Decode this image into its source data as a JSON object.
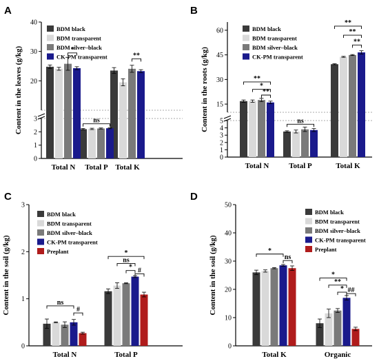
{
  "colors": {
    "BDM black": "#3a3a3a",
    "BDM transparent": "#d9d9d9",
    "BDM silver–black": "#7a7a7a",
    "CK-PM transparent": "#1a1a8c",
    "Preplant": "#b01c1c"
  },
  "chart_data": [
    {
      "panel": "A",
      "type": "bar",
      "ylabel": "Content in the leaves (g/kg)",
      "xlabel": "",
      "broken_axis": true,
      "ylim_lower": [
        0,
        3
      ],
      "ylim_upper": [
        10,
        40
      ],
      "yticks": [
        "0",
        "1",
        "2",
        "3",
        "20",
        "30",
        "40"
      ],
      "legend_position": "top-left",
      "categories": [
        "Total N",
        "Total P",
        "Total K"
      ],
      "series": [
        {
          "name": "BDM black",
          "values": [
            24.8,
            2.2,
            23.5
          ],
          "err": [
            0.6,
            0.05,
            1.0
          ]
        },
        {
          "name": "BDM transparent",
          "values": [
            24.1,
            2.22,
            19.5
          ],
          "err": [
            0.5,
            0.05,
            1.2
          ]
        },
        {
          "name": "BDM silver–black",
          "values": [
            25.8,
            2.25,
            24.1
          ],
          "err": [
            2.2,
            0.04,
            1.2
          ]
        },
        {
          "name": "CK-PM transparent",
          "values": [
            24.3,
            2.27,
            23.3
          ],
          "err": [
            0.5,
            0.04,
            0.5
          ]
        }
      ],
      "annotations": [
        {
          "label": "*",
          "group": 0,
          "pairs": [
            [
              2,
              3
            ]
          ],
          "y": 29.5
        },
        {
          "label": "ns",
          "group": 1,
          "pairs": [
            [
              0,
              3
            ]
          ],
          "y": 2.6
        },
        {
          "label": "**",
          "group": 2,
          "pairs": [
            [
              2,
              3
            ]
          ],
          "y": 27.5
        }
      ]
    },
    {
      "panel": "B",
      "type": "bar",
      "ylabel": "Content in the roots (g/kg)",
      "xlabel": "",
      "broken_axis": true,
      "ylim_lower": [
        0,
        5
      ],
      "ylim_upper": [
        10,
        65
      ],
      "yticks": [
        "0",
        "1",
        "2",
        "3",
        "4",
        "5",
        "15",
        "30",
        "45",
        "60"
      ],
      "legend_position": "top-left",
      "categories": [
        "Total N",
        "Total P",
        "Total K"
      ],
      "series": [
        {
          "name": "BDM black",
          "values": [
            16.8,
            3.5,
            39.3
          ],
          "err": [
            0.7,
            0.1,
            0.3
          ]
        },
        {
          "name": "BDM transparent",
          "values": [
            16.8,
            3.5,
            43.8
          ],
          "err": [
            0.7,
            0.2,
            0.3
          ]
        },
        {
          "name": "BDM silver–black",
          "values": [
            17.5,
            3.8,
            44.9
          ],
          "err": [
            1.0,
            0.3,
            0.3
          ]
        },
        {
          "name": "CK-PM transparent",
          "values": [
            16.0,
            3.7,
            46.5
          ],
          "err": [
            0.8,
            0.2,
            1.0
          ]
        }
      ],
      "annotations": [
        {
          "label": "**",
          "group": 0,
          "pairs": [
            [
              0,
              3
            ]
          ],
          "y": 28.5
        },
        {
          "label": "*",
          "group": 0,
          "pairs": [
            [
              1,
              3
            ]
          ],
          "y": 24
        },
        {
          "label": "**",
          "group": 0,
          "pairs": [
            [
              2,
              3
            ]
          ],
          "y": 20.5
        },
        {
          "label": "ns",
          "group": 1,
          "pairs": [
            [
              0,
              3
            ]
          ],
          "y": 4.5
        },
        {
          "label": "**",
          "group": 2,
          "pairs": [
            [
              0,
              3
            ]
          ],
          "y": 62.5
        },
        {
          "label": "**",
          "group": 2,
          "pairs": [
            [
              1,
              3
            ]
          ],
          "y": 57
        },
        {
          "label": "**",
          "group": 2,
          "pairs": [
            [
              2,
              3
            ]
          ],
          "y": 51
        }
      ]
    },
    {
      "panel": "C",
      "type": "bar",
      "ylabel": "Content in the soil (g/kg)",
      "xlabel": "",
      "ylim": [
        0,
        3
      ],
      "yticks": [
        "0",
        "1",
        "2",
        "3"
      ],
      "legend_position": "top-left",
      "categories": [
        "Total N",
        "Total P"
      ],
      "series": [
        {
          "name": "BDM black",
          "values": [
            0.47,
            1.16
          ],
          "err": [
            0.1,
            0.05
          ]
        },
        {
          "name": "BDM transparent",
          "values": [
            0.5,
            1.28
          ],
          "err": [
            0.01,
            0.06
          ]
        },
        {
          "name": "BDM silver–black",
          "values": [
            0.45,
            1.33
          ],
          "err": [
            0.06,
            0.01
          ]
        },
        {
          "name": "CK-PM transparent",
          "values": [
            0.5,
            1.47
          ],
          "err": [
            0.06,
            0.02
          ]
        },
        {
          "name": "Preplant",
          "values": [
            0.27,
            1.09
          ],
          "err": [
            0.02,
            0.05
          ]
        }
      ],
      "annotations": [
        {
          "label": "ns",
          "group": 0,
          "pairs": [
            [
              0,
              3
            ]
          ],
          "y": 0.85
        },
        {
          "label": "#",
          "group": 0,
          "pairs": [
            [
              3,
              4
            ]
          ],
          "y": 0.7
        },
        {
          "label": "*",
          "group": 1,
          "pairs": [
            [
              0,
              4
            ]
          ],
          "y": 1.9
        },
        {
          "label": "ns",
          "group": 1,
          "pairs": [
            [
              1,
              3
            ]
          ],
          "y": 1.75
        },
        {
          "label": "*",
          "group": 1,
          "pairs": [
            [
              2,
              3
            ]
          ],
          "y": 1.6
        },
        {
          "label": "#",
          "group": 1,
          "pairs": [
            [
              3,
              4
            ]
          ],
          "y": 1.53
        }
      ]
    },
    {
      "panel": "D",
      "type": "bar",
      "ylabel": "Content in the soil (g/kg)",
      "xlabel": "",
      "ylim": [
        0,
        50
      ],
      "yticks": [
        "0",
        "10",
        "20",
        "30",
        "40",
        "50"
      ],
      "legend_position": "top-right",
      "categories": [
        "Total K",
        "Organic"
      ],
      "series": [
        {
          "name": "BDM black",
          "values": [
            26.0,
            8.0
          ],
          "err": [
            0.8,
            1.5
          ]
        },
        {
          "name": "BDM transparent",
          "values": [
            26.5,
            11.5
          ],
          "err": [
            0.4,
            1.5
          ]
        },
        {
          "name": "BDM silver–black",
          "values": [
            27.5,
            12.5
          ],
          "err": [
            0.2,
            0.7
          ]
        },
        {
          "name": "CK-PM transparent",
          "values": [
            28.5,
            17.0
          ],
          "err": [
            0.3,
            0.8
          ]
        },
        {
          "name": "Preplant",
          "values": [
            27.5,
            6.0
          ],
          "err": [
            0.8,
            0.6
          ]
        }
      ],
      "annotations": [
        {
          "label": "*",
          "group": 0,
          "pairs": [
            [
              0,
              3
            ]
          ],
          "y": 32.5
        },
        {
          "label": "ns",
          "group": 0,
          "pairs": [
            [
              3,
              4
            ]
          ],
          "y": 30.2
        },
        {
          "label": "*",
          "group": 1,
          "pairs": [
            [
              0,
              3
            ]
          ],
          "y": 24
        },
        {
          "label": "**",
          "group": 1,
          "pairs": [
            [
              1,
              3
            ]
          ],
          "y": 21.5
        },
        {
          "label": "*",
          "group": 1,
          "pairs": [
            [
              2,
              3
            ]
          ],
          "y": 19
        },
        {
          "label": "##",
          "group": 1,
          "pairs": [
            [
              3,
              4
            ]
          ],
          "y": 18.5
        }
      ]
    }
  ]
}
